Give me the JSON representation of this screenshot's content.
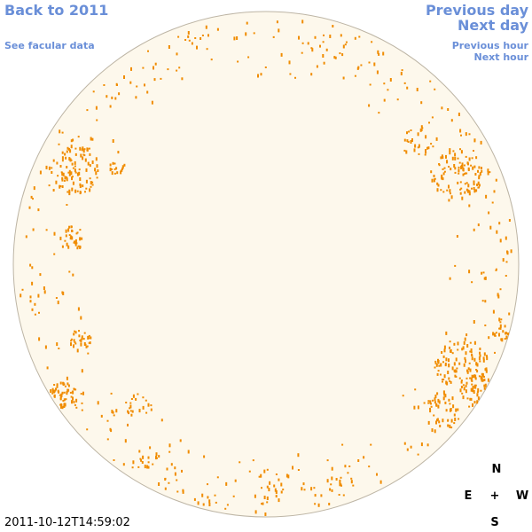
{
  "header": {
    "back_link": "Back to 2011",
    "facular_link": "See facular data",
    "previous_day": "Previous day",
    "next_day": "Next day",
    "previous_hour": "Previous hour",
    "next_hour": "Next hour"
  },
  "timestamp": "2011-10-12T14:59:02",
  "compass": {
    "north": "N",
    "east": "E",
    "center": "+",
    "west": "W",
    "south": "S"
  }
}
